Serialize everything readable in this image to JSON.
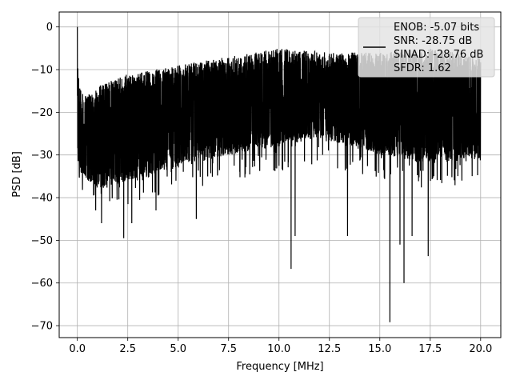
{
  "chart_data": {
    "type": "line",
    "xlabel": "Frequency [MHz]",
    "ylabel": "PSD [dB]",
    "xlim": [
      -0.9,
      21.0
    ],
    "ylim": [
      -72.8,
      3.5
    ],
    "grid": true,
    "xticks": [
      0.0,
      2.5,
      5.0,
      7.5,
      10.0,
      12.5,
      15.0,
      17.5,
      20.0
    ],
    "xtick_labels": [
      "0.0",
      "2.5",
      "5.0",
      "7.5",
      "10.0",
      "12.5",
      "15.0",
      "17.5",
      "20.0"
    ],
    "yticks": [
      0,
      -10,
      -20,
      -30,
      -40,
      -50,
      -60,
      -70
    ],
    "ytick_labels": [
      "0",
      "−10",
      "−20",
      "−30",
      "−40",
      "−50",
      "−60",
      "−70"
    ],
    "legend": {
      "placement": "upper-right",
      "entries": [
        "ENOB: -5.07 bits",
        "SNR: -28.75 dB",
        "SINAD: -28.76 dB",
        "SFDR: 1.62"
      ]
    },
    "series": [
      {
        "color": "#000000",
        "x_range": [
          0.0,
          20.0
        ],
        "peak": {
          "x": 0.0,
          "y": 0.0
        },
        "upper_envelope": {
          "x": [
            0.0,
            0.2,
            0.5,
            1.0,
            2.5,
            5.0,
            7.5,
            10.0,
            12.5,
            15.0,
            17.5,
            20.0
          ],
          "y": [
            -8,
            -15,
            -16,
            -14,
            -11,
            -9,
            -7,
            -5,
            -6,
            -6,
            -5,
            -7
          ]
        },
        "lower_envelope": {
          "x": [
            0.0,
            0.5,
            1.0,
            2.5,
            5.0,
            7.5,
            10.0,
            12.0,
            15.0,
            17.5,
            20.0
          ],
          "y": [
            -33,
            -36,
            -38,
            -36,
            -33,
            -30,
            -28,
            -26,
            -30,
            -32,
            -31
          ]
        },
        "deep_notches": [
          {
            "x": 1.2,
            "y": -46
          },
          {
            "x": 2.3,
            "y": -49.5
          },
          {
            "x": 2.7,
            "y": -46
          },
          {
            "x": 3.9,
            "y": -43
          },
          {
            "x": 5.9,
            "y": -45
          },
          {
            "x": 10.6,
            "y": -56.7
          },
          {
            "x": 10.8,
            "y": -49
          },
          {
            "x": 13.4,
            "y": -49
          },
          {
            "x": 15.5,
            "y": -69.2
          },
          {
            "x": 16.2,
            "y": -60
          },
          {
            "x": 16.0,
            "y": -51
          },
          {
            "x": 16.6,
            "y": -49
          },
          {
            "x": 17.4,
            "y": -53.7
          }
        ]
      }
    ]
  }
}
